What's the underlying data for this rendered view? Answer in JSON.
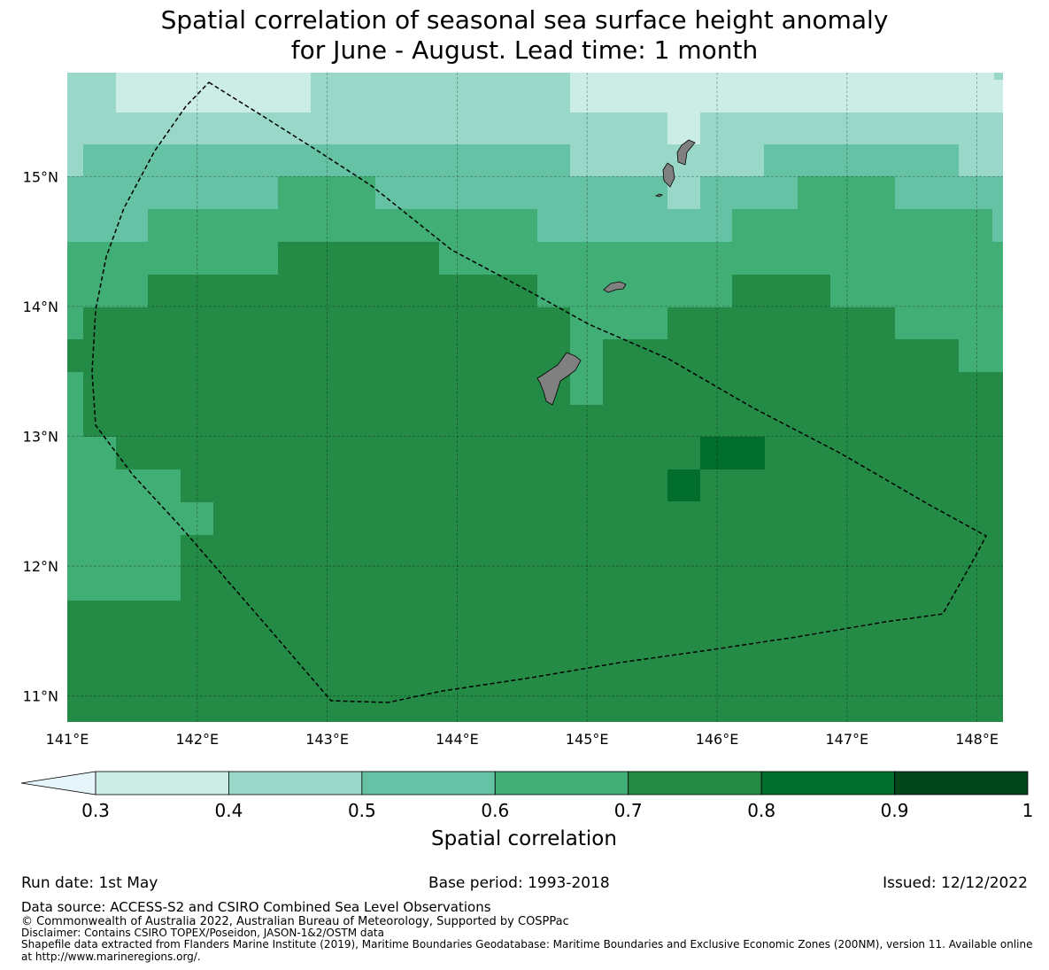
{
  "title_line1": "Spatial correlation of seasonal sea surface height anomaly",
  "title_line2": "for June - August. Lead time: 1 month",
  "map": {
    "lon_range": [
      141.0,
      148.2
    ],
    "lat_range": [
      10.8,
      15.8
    ],
    "lon_ticks": [
      {
        "value": 141,
        "label": "141°E"
      },
      {
        "value": 142,
        "label": "142°E"
      },
      {
        "value": 143,
        "label": "143°E"
      },
      {
        "value": 144,
        "label": "144°E"
      },
      {
        "value": 145,
        "label": "145°E"
      },
      {
        "value": 146,
        "label": "146°E"
      },
      {
        "value": 147,
        "label": "147°E"
      },
      {
        "value": 148,
        "label": "148°E"
      }
    ],
    "lat_ticks": [
      {
        "value": 15,
        "label": "15°N"
      },
      {
        "value": 14,
        "label": "14°N"
      },
      {
        "value": 13,
        "label": "13°N"
      },
      {
        "value": 12,
        "label": "12°N"
      },
      {
        "value": 11,
        "label": "11°N"
      }
    ],
    "grid_on": true,
    "land_color": "#808080",
    "eez_boundary_style": "dashed black"
  },
  "colorbar": {
    "label": "Spatial correlation",
    "ticks": [
      "0.3",
      "0.4",
      "0.5",
      "0.6",
      "0.7",
      "0.8",
      "0.9",
      "1"
    ],
    "colors": [
      "#ccece6",
      "#99d8c9",
      "#66c2a4",
      "#41ae76",
      "#238b45",
      "#006d2c",
      "#00441b"
    ],
    "under_color": "#e5f5f9",
    "extend": "min"
  },
  "footer": {
    "run_date": "Run date: 1st May",
    "base_period": "Base period: 1993-2018",
    "issued": "Issued: 12/12/2022",
    "data_source": "Data source: ACCESS-S2 and CSIRO Combined Sea Level Observations",
    "copyright": "© Commonwealth of Australia 2022, Australian Bureau of Meteorology, Supported by COSPPac",
    "disclaimer": "Disclaimer: Contains CSIRO TOPEX/Poseidon, JASON-1&2/OSTM data",
    "shapefile_line1": "Shapefile data extracted from Flanders Marine Institute (2019), Maritime Boundaries Geodatabase: Maritime Boundaries and Exclusive Economic Zones (200NM), version 11. Available online",
    "shapefile_line2": "at http://www.marineregions.org/."
  }
}
